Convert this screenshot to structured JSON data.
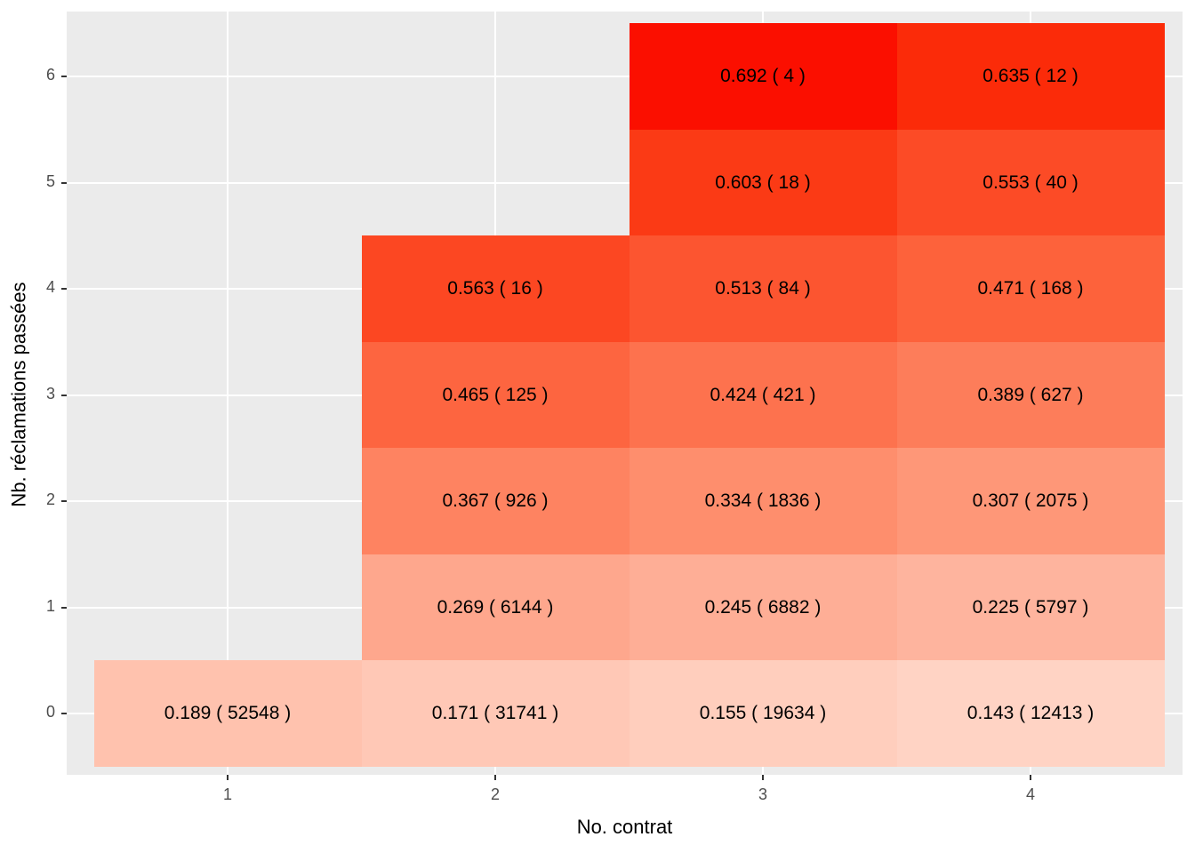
{
  "chart_data": {
    "type": "heatmap",
    "title": "",
    "xlabel": "No. contrat",
    "ylabel": "Nb. réclamations passées",
    "x_ticks": [
      1,
      2,
      3,
      4
    ],
    "y_ticks": [
      0,
      1,
      2,
      3,
      4,
      5,
      6
    ],
    "x_range": [
      0.4,
      4.57
    ],
    "y_range": [
      -0.58,
      6.61
    ],
    "grid": "major-white-on-gray",
    "legend": "none",
    "cell_label_format": "value ( n )",
    "cells": [
      {
        "x": 1,
        "y": 0,
        "value": 0.189,
        "n": 52548,
        "color": "#FFC2AE"
      },
      {
        "x": 2,
        "y": 0,
        "value": 0.171,
        "n": 31741,
        "color": "#FFC8B6"
      },
      {
        "x": 3,
        "y": 0,
        "value": 0.155,
        "n": 19634,
        "color": "#FFCEBD"
      },
      {
        "x": 4,
        "y": 0,
        "value": 0.143,
        "n": 12413,
        "color": "#FFD3C4"
      },
      {
        "x": 2,
        "y": 1,
        "value": 0.269,
        "n": 6144,
        "color": "#FEA78D"
      },
      {
        "x": 3,
        "y": 1,
        "value": 0.245,
        "n": 6882,
        "color": "#FEAE96"
      },
      {
        "x": 4,
        "y": 1,
        "value": 0.225,
        "n": 5797,
        "color": "#FEB49E"
      },
      {
        "x": 2,
        "y": 2,
        "value": 0.367,
        "n": 926,
        "color": "#FE8361"
      },
      {
        "x": 3,
        "y": 2,
        "value": 0.334,
        "n": 1836,
        "color": "#FE8E6D"
      },
      {
        "x": 4,
        "y": 2,
        "value": 0.307,
        "n": 2075,
        "color": "#FE9778"
      },
      {
        "x": 2,
        "y": 3,
        "value": 0.465,
        "n": 125,
        "color": "#FD6540"
      },
      {
        "x": 3,
        "y": 3,
        "value": 0.424,
        "n": 421,
        "color": "#FD724E"
      },
      {
        "x": 4,
        "y": 3,
        "value": 0.389,
        "n": 627,
        "color": "#FD7D5A"
      },
      {
        "x": 2,
        "y": 4,
        "value": 0.563,
        "n": 16,
        "color": "#FC4722"
      },
      {
        "x": 3,
        "y": 4,
        "value": 0.513,
        "n": 84,
        "color": "#FC5530"
      },
      {
        "x": 4,
        "y": 4,
        "value": 0.471,
        "n": 168,
        "color": "#FD623B"
      },
      {
        "x": 3,
        "y": 5,
        "value": 0.603,
        "n": 18,
        "color": "#FB3A15"
      },
      {
        "x": 4,
        "y": 5,
        "value": 0.553,
        "n": 40,
        "color": "#FC4B26"
      },
      {
        "x": 3,
        "y": 6,
        "value": 0.692,
        "n": 4,
        "color": "#FB0F00"
      },
      {
        "x": 4,
        "y": 6,
        "value": 0.635,
        "n": 12,
        "color": "#FB2B09"
      }
    ],
    "colors": {
      "panel_background": "#EBEBEB",
      "grid": "#FFFFFF",
      "tick_mark": "#333333",
      "tick_label": "#4D4D4D",
      "axis_title": "#000000",
      "cell_text": "#000000",
      "scale_low": "#FFD3C4",
      "scale_high": "#FB0F00"
    }
  }
}
